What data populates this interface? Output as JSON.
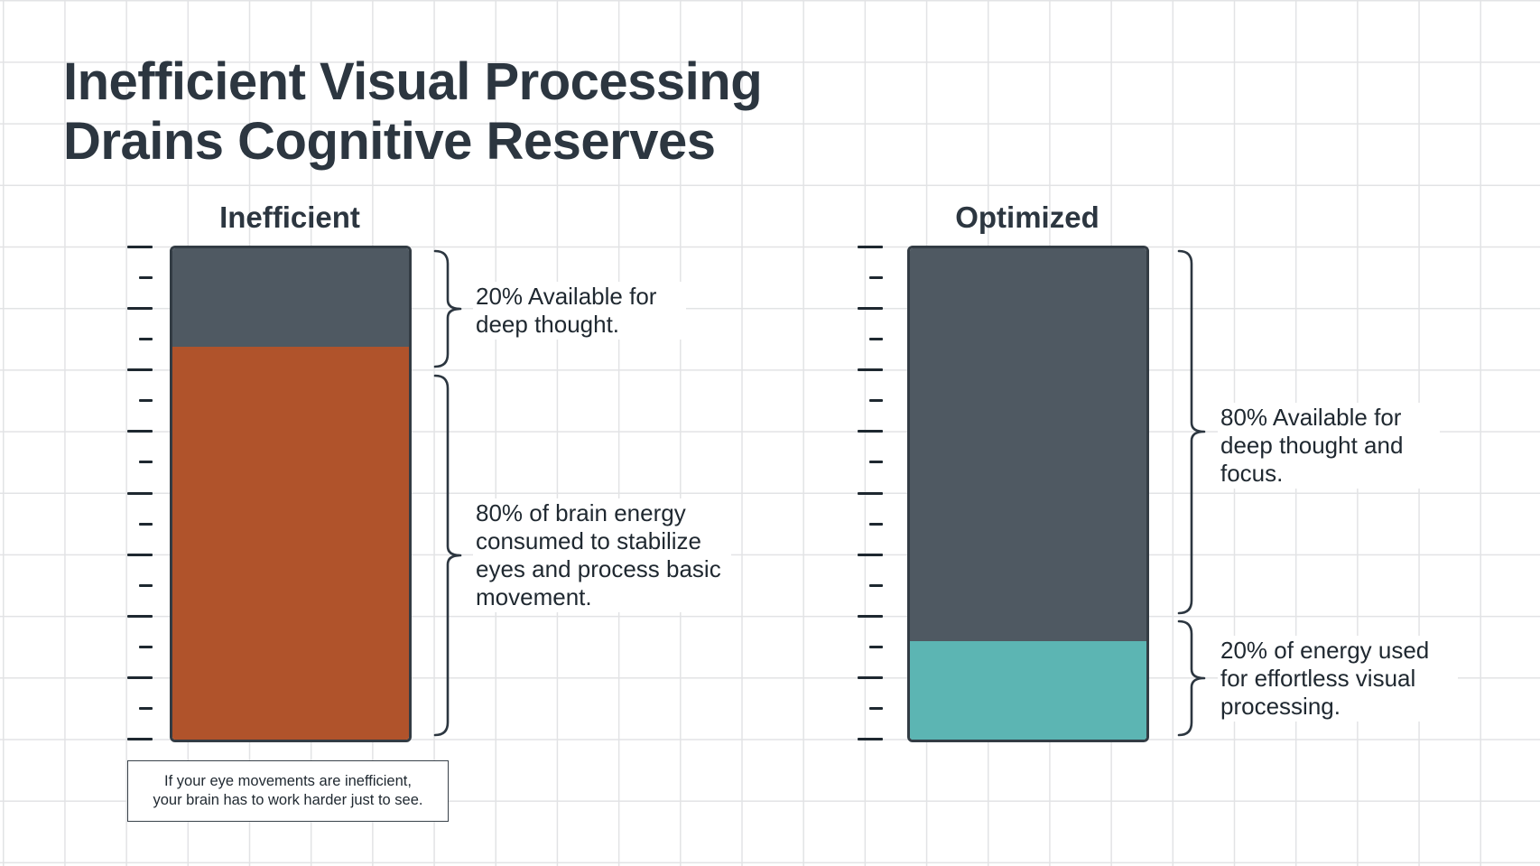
{
  "title": {
    "line1": "Inefficient Visual Processing",
    "line2": "Drains Cognitive Reserves"
  },
  "inefficient": {
    "label": "Inefficient",
    "available_percent": 20,
    "consumed_percent": 80,
    "available_text": "20% Available for deep thought.",
    "consumed_text": "80% of brain energy consumed to stabilize eyes and process basic movement.",
    "note_line1": "If your eye movements are inefficient,",
    "note_line2": "your brain has to work harder just to see."
  },
  "optimized": {
    "label": "Optimized",
    "available_percent": 80,
    "consumed_percent": 20,
    "available_text": "80% Available for deep thought and focus.",
    "consumed_text": "20% of energy used for effortless visual processing."
  },
  "scale": {
    "tick_count": 17
  },
  "colors": {
    "available": "#4f5962",
    "consumed_inefficient": "#b0532b",
    "consumed_optimized": "#5cb5b3",
    "text": "#2c3640"
  }
}
